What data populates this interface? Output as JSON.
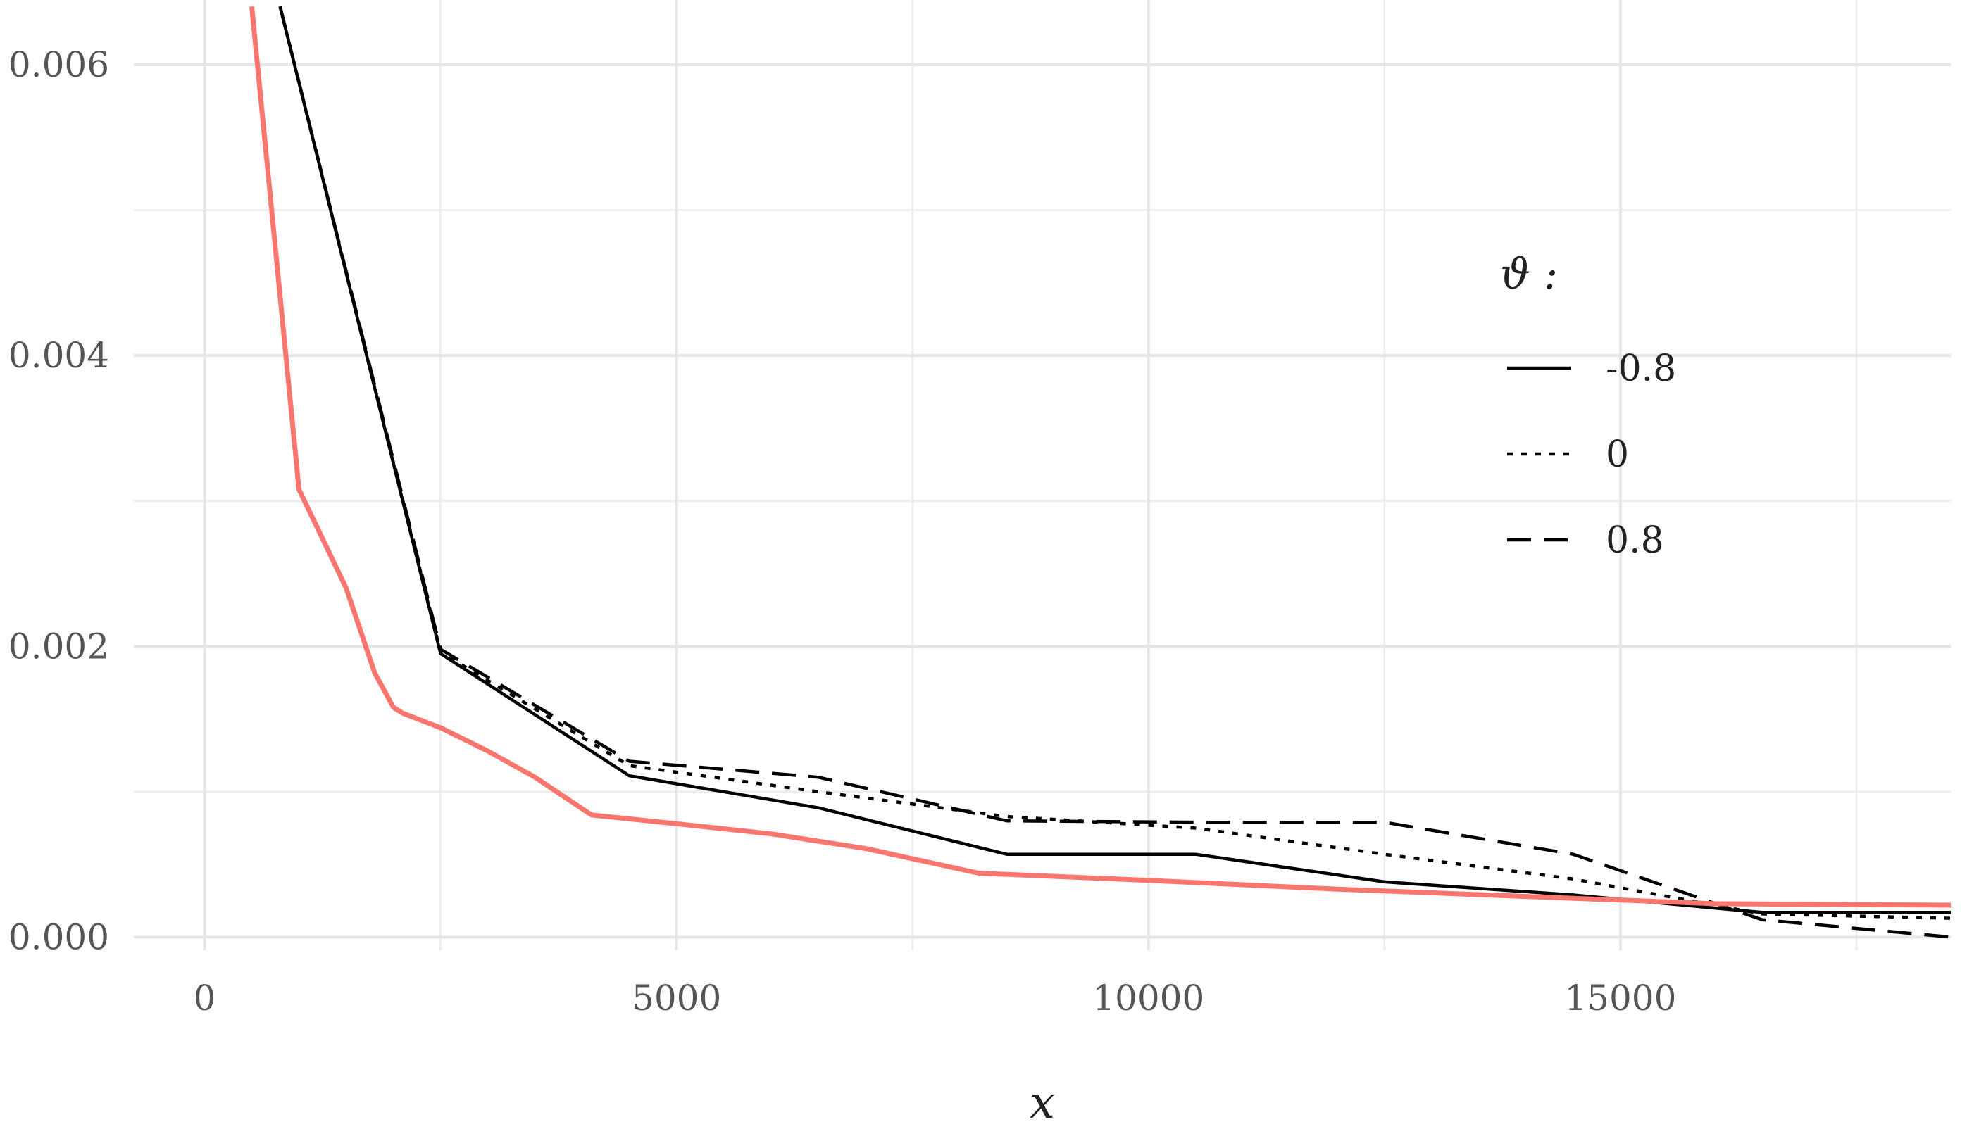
{
  "chart_data": {
    "type": "line",
    "title": "",
    "xlabel": "x",
    "ylabel": "",
    "xlim": [
      -750,
      18500
    ],
    "ylim": [
      -9e-05,
      0.0063
    ],
    "x_ticks": [
      0,
      5000,
      10000,
      15000
    ],
    "x_tick_labels": [
      "0",
      "5000",
      "10000",
      "15000"
    ],
    "y_ticks": [
      0.0,
      0.002,
      0.004,
      0.006
    ],
    "y_tick_labels": [
      "0.000",
      "0.002",
      "0.004",
      "0.006"
    ],
    "grid": true,
    "legend": {
      "title": "ϑ :",
      "placement": "right",
      "entries": [
        {
          "label": "-0.8",
          "linestyle": "solid"
        },
        {
          "label": "0",
          "linestyle": "dotted"
        },
        {
          "label": "0.8",
          "linestyle": "dashed"
        }
      ]
    },
    "series": [
      {
        "name": "-0.8",
        "color": "#000000",
        "linestyle": "solid",
        "x": [
          800,
          2500,
          4500,
          6500,
          8500,
          10500,
          12500,
          14500,
          16500,
          18500
        ],
        "y": [
          0.0064,
          0.00195,
          0.00111,
          0.00089,
          0.00057,
          0.00057,
          0.00038,
          0.00029,
          0.00017,
          0.00017
        ]
      },
      {
        "name": "0",
        "color": "#000000",
        "linestyle": "dotted",
        "x": [
          800,
          2500,
          4500,
          6500,
          8500,
          10500,
          12500,
          14500,
          16500,
          18500
        ],
        "y": [
          0.0064,
          0.00196,
          0.00118,
          0.001,
          0.00083,
          0.00075,
          0.00057,
          0.0004,
          0.00016,
          0.00013
        ]
      },
      {
        "name": "0.8",
        "color": "#000000",
        "linestyle": "dashed",
        "x": [
          800,
          2500,
          4500,
          6500,
          8500,
          10500,
          12500,
          14500,
          16500,
          18500
        ],
        "y": [
          0.0064,
          0.00198,
          0.00121,
          0.0011,
          0.0008,
          0.00079,
          0.00079,
          0.00057,
          0.00012,
          0.0
        ]
      },
      {
        "name": "",
        "color": "#f8766d",
        "linestyle": "solid",
        "x": [
          500,
          1000,
          1500,
          1800,
          2000,
          2100,
          2300,
          2500,
          3000,
          3500,
          4100,
          5000,
          6000,
          7000,
          8200,
          10000,
          12000,
          14000,
          16000,
          18500
        ],
        "y": [
          0.0064,
          0.00308,
          0.0024,
          0.00182,
          0.00158,
          0.00154,
          0.00149,
          0.00144,
          0.00128,
          0.0011,
          0.00084,
          0.00078,
          0.00071,
          0.00061,
          0.00044,
          0.00039,
          0.00033,
          0.00028,
          0.00023,
          0.00022
        ]
      }
    ]
  }
}
